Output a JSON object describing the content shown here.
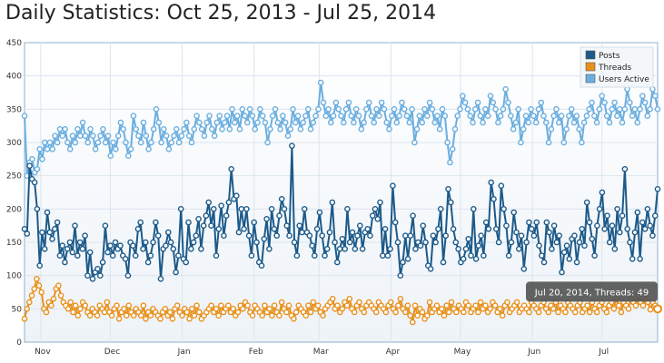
{
  "title": "Daily Statistics: Oct 25, 2013 - Jul 25, 2014",
  "chart_data": {
    "type": "line",
    "x_start": "2013-10-25",
    "x_end": "2014-07-25",
    "ylim": [
      0,
      450
    ],
    "yticks": [
      0,
      50,
      100,
      150,
      200,
      250,
      300,
      350,
      400,
      450
    ],
    "x_month_labels": [
      {
        "label": "Nov",
        "date": "2013-11-01"
      },
      {
        "label": "Dec",
        "date": "2013-12-01"
      },
      {
        "label": "Jan",
        "date": "2014-01-01"
      },
      {
        "label": "Feb",
        "date": "2014-02-01"
      },
      {
        "label": "Mar",
        "date": "2014-03-01"
      },
      {
        "label": "Apr",
        "date": "2014-04-01"
      },
      {
        "label": "May",
        "date": "2014-05-01"
      },
      {
        "label": "Jun",
        "date": "2014-06-01"
      },
      {
        "label": "Jul",
        "date": "2014-07-01"
      }
    ],
    "grid": true,
    "legend_position": "top-right",
    "series": [
      {
        "name": "Posts",
        "color": "#1c5a8a",
        "values": [
          170,
          163,
          265,
          245,
          240,
          200,
          115,
          165,
          140,
          195,
          165,
          155,
          170,
          180,
          130,
          145,
          120,
          140,
          150,
          135,
          175,
          130,
          150,
          140,
          160,
          100,
          135,
          95,
          105,
          110,
          100,
          120,
          175,
          135,
          145,
          130,
          150,
          140,
          145,
          130,
          125,
          100,
          150,
          145,
          130,
          170,
          180,
          140,
          150,
          120,
          130,
          150,
          180,
          160,
          95,
          140,
          145,
          165,
          150,
          140,
          105,
          130,
          200,
          125,
          120,
          180,
          140,
          150,
          160,
          185,
          140,
          175,
          190,
          210,
          175,
          200,
          130,
          170,
          205,
          160,
          190,
          210,
          260,
          215,
          220,
          165,
          200,
          170,
          200,
          160,
          130,
          180,
          150,
          120,
          115,
          155,
          185,
          140,
          200,
          170,
          160,
          190,
          215,
          200,
          175,
          160,
          295,
          150,
          130,
          175,
          165,
          200,
          165,
          160,
          145,
          130,
          170,
          195,
          160,
          130,
          140,
          165,
          210,
          150,
          120,
          140,
          155,
          140,
          200,
          150,
          165,
          140,
          160,
          175,
          140,
          165,
          170,
          160,
          190,
          200,
          185,
          210,
          130,
          170,
          130,
          140,
          235,
          180,
          150,
          100,
          120,
          160,
          125,
          160,
          190,
          140,
          150,
          145,
          175,
          150,
          115,
          110,
          160,
          150,
          170,
          200,
          120,
          160,
          230,
          210,
          170,
          150,
          140,
          120,
          125,
          140,
          155,
          130,
          200,
          125,
          145,
          160,
          130,
          180,
          170,
          240,
          215,
          170,
          150,
          235,
          200,
          175,
          130,
          150,
          195,
          165,
          140,
          160,
          110,
          150,
          180,
          170,
          160,
          180,
          145,
          130,
          120,
          180,
          165,
          140,
          175,
          150,
          160,
          105,
          135,
          145,
          125,
          155,
          160,
          120,
          150,
          170,
          145,
          210,
          180,
          155,
          130,
          175,
          200,
          225,
          170,
          190,
          150,
          175,
          140,
          200,
          165,
          190,
          260,
          170,
          150,
          125,
          165,
          195,
          125,
          180,
          170,
          200,
          175,
          160,
          190,
          230
        ]
      },
      {
        "name": "Threads",
        "color": "#e8901c",
        "values": [
          35,
          50,
          60,
          70,
          80,
          95,
          85,
          75,
          50,
          45,
          60,
          55,
          65,
          80,
          85,
          70,
          60,
          55,
          50,
          60,
          45,
          55,
          40,
          50,
          60,
          55,
          45,
          40,
          50,
          45,
          40,
          55,
          50,
          45,
          60,
          45,
          40,
          50,
          55,
          35,
          45,
          50,
          40,
          55,
          45,
          40,
          50,
          45,
          40,
          55,
          35,
          45,
          40,
          50,
          45,
          40,
          35,
          45,
          50,
          40,
          45,
          35,
          50,
          55,
          45,
          40,
          50,
          45,
          35,
          50,
          40,
          55,
          45,
          35,
          40,
          45,
          50,
          55,
          45,
          50,
          40,
          55,
          45,
          50,
          55,
          45,
          50,
          40,
          45,
          55,
          50,
          60,
          55,
          45,
          40,
          55,
          50,
          45,
          40,
          55,
          45,
          50,
          40,
          55,
          45,
          40,
          60,
          50,
          45,
          55,
          40,
          35,
          45,
          55,
          50,
          45,
          40,
          55,
          45,
          60,
          50,
          55,
          45,
          40,
          50,
          55,
          60,
          65,
          50,
          55,
          45,
          50,
          60,
          55,
          65,
          50,
          45,
          55,
          60,
          50,
          45,
          55,
          60,
          55,
          50,
          45,
          60,
          55,
          50,
          45,
          55,
          60,
          50,
          45,
          55,
          65,
          50,
          45,
          55,
          40,
          30,
          55,
          40,
          50,
          45,
          35,
          40,
          60,
          45,
          50,
          55,
          45,
          50,
          40,
          55,
          45,
          60,
          50,
          45,
          55,
          50,
          45,
          60,
          55,
          45,
          50,
          55,
          45,
          60,
          50,
          55,
          45,
          50,
          60,
          55,
          45,
          50,
          40,
          55,
          60,
          45,
          50,
          55,
          60,
          45,
          50,
          55,
          50,
          45,
          60,
          55,
          50,
          45,
          55,
          60,
          50,
          45,
          55,
          50,
          60,
          45,
          55,
          50,
          45,
          60,
          55,
          50,
          45,
          55,
          60,
          45,
          50,
          55,
          45,
          60,
          50,
          45,
          55,
          60,
          50,
          45,
          55,
          60,
          50,
          65,
          55,
          45,
          60,
          55,
          50,
          65,
          60,
          55,
          70,
          60,
          55,
          65,
          60,
          49,
          60,
          55,
          50
        ]
      },
      {
        "name": "Users Active",
        "color": "#6aaee0",
        "values": [
          340,
          250,
          270,
          275,
          255,
          260,
          290,
          275,
          300,
          290,
          300,
          290,
          310,
          300,
          320,
          310,
          320,
          300,
          290,
          310,
          300,
          320,
          310,
          330,
          310,
          300,
          320,
          310,
          290,
          300,
          310,
          320,
          300,
          310,
          280,
          300,
          290,
          310,
          330,
          320,
          300,
          280,
          290,
          340,
          320,
          310,
          300,
          330,
          310,
          290,
          300,
          320,
          350,
          330,
          300,
          320,
          310,
          290,
          300,
          310,
          320,
          300,
          310,
          320,
          330,
          310,
          300,
          320,
          340,
          330,
          320,
          310,
          330,
          340,
          320,
          310,
          330,
          340,
          320,
          330,
          340,
          320,
          350,
          330,
          340,
          320,
          350,
          340,
          330,
          350,
          340,
          320,
          330,
          350,
          340,
          330,
          300,
          320,
          340,
          350,
          330,
          320,
          340,
          330,
          310,
          320,
          350,
          330,
          340,
          320,
          330,
          340,
          350,
          320,
          330,
          340,
          350,
          390,
          360,
          340,
          350,
          330,
          340,
          360,
          350,
          340,
          330,
          350,
          360,
          340,
          330,
          350,
          340,
          320,
          330,
          350,
          360,
          340,
          330,
          350,
          340,
          360,
          350,
          330,
          320,
          340,
          350,
          330,
          340,
          360,
          350,
          340,
          330,
          350,
          300,
          320,
          340,
          330,
          350,
          340,
          360,
          350,
          330,
          340,
          320,
          350,
          340,
          300,
          270,
          290,
          320,
          340,
          350,
          370,
          360,
          350,
          340,
          330,
          350,
          360,
          340,
          330,
          350,
          340,
          370,
          360,
          350,
          330,
          340,
          350,
          380,
          360,
          340,
          320,
          330,
          350,
          300,
          320,
          340,
          330,
          350,
          340,
          330,
          350,
          360,
          340,
          330,
          300,
          320,
          340,
          350,
          330,
          340,
          300,
          320,
          340,
          350,
          330,
          340,
          320,
          300,
          330,
          340,
          350,
          360,
          340,
          330,
          350,
          370,
          360,
          340,
          330,
          350,
          360,
          340,
          350,
          330,
          350,
          380,
          360,
          340,
          350,
          330,
          350,
          370,
          360,
          340,
          350,
          380,
          370,
          350
        ]
      }
    ],
    "tooltip": "Jul 20, 2014, Threads: 49"
  }
}
